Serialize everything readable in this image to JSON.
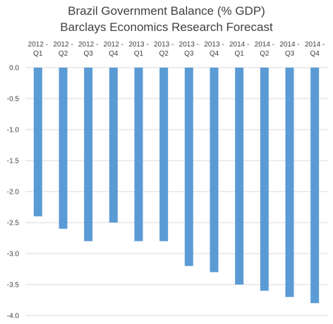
{
  "chart_data": {
    "type": "bar",
    "title": [
      "Brazil Government Balance (% GDP)",
      "Barclays Economics Research Forecast"
    ],
    "categories": [
      [
        "2012 -",
        "Q1"
      ],
      [
        "2012 -",
        "Q2"
      ],
      [
        "2012 -",
        "Q3"
      ],
      [
        "2012 -",
        "Q4"
      ],
      [
        "2013 -",
        "Q1"
      ],
      [
        "2013 -",
        "Q2"
      ],
      [
        "2013 -",
        "Q3"
      ],
      [
        "2013 -",
        "Q4"
      ],
      [
        "2014 -",
        "Q1"
      ],
      [
        "2014 -",
        "Q2"
      ],
      [
        "2014 -",
        "Q3"
      ],
      [
        "2014 -",
        "Q4"
      ]
    ],
    "values": [
      -2.4,
      -2.6,
      -2.8,
      -2.5,
      -2.8,
      -2.8,
      -3.2,
      -3.3,
      -3.5,
      -3.6,
      -3.7,
      -3.8
    ],
    "ylim": [
      -4.0,
      0.0
    ],
    "yticks": [
      "0.0",
      "-0.5",
      "-1.0",
      "-1.5",
      "-2.0",
      "-2.5",
      "-3.0",
      "-3.5",
      "-4.0"
    ],
    "xlabel": "",
    "ylabel": "",
    "grid": true,
    "legend": "none",
    "bar_color": "#5b9bd5",
    "grid_color": "#d9d9d9"
  }
}
